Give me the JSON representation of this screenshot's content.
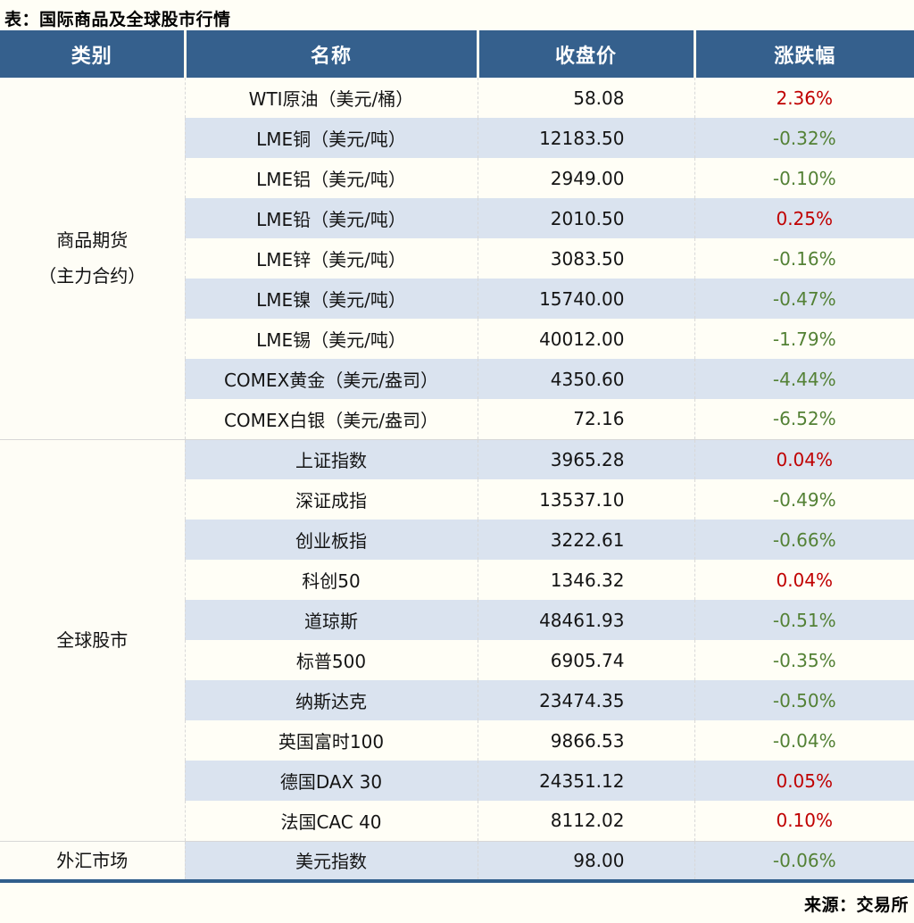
{
  "title": "表：国际商品及全球股市行情",
  "source": "来源：交易所",
  "colors": {
    "header_bg": "#35608D",
    "header_text": "#FFFFFF",
    "row_alt_bg": "#DAE3EF",
    "page_bg": "#FFFEF6",
    "up": "#C00000",
    "down": "#538135",
    "bottom_border": "#315F8C"
  },
  "table": {
    "headers": [
      "类别",
      "名称",
      "收盘价",
      "涨跌幅"
    ],
    "groups": [
      {
        "category_lines": [
          "商品期货",
          "（主力合约）"
        ],
        "rows": [
          {
            "name": "WTI原油（美元/桶）",
            "close": "58.08",
            "change": "2.36%",
            "direction": "up"
          },
          {
            "name": "LME铜（美元/吨）",
            "close": "12183.50",
            "change": "-0.32%",
            "direction": "down"
          },
          {
            "name": "LME铝（美元/吨）",
            "close": "2949.00",
            "change": "-0.10%",
            "direction": "down"
          },
          {
            "name": "LME铅（美元/吨）",
            "close": "2010.50",
            "change": "0.25%",
            "direction": "up"
          },
          {
            "name": "LME锌（美元/吨）",
            "close": "3083.50",
            "change": "-0.16%",
            "direction": "down"
          },
          {
            "name": "LME镍（美元/吨）",
            "close": "15740.00",
            "change": "-0.47%",
            "direction": "down"
          },
          {
            "name": "LME锡（美元/吨）",
            "close": "40012.00",
            "change": "-1.79%",
            "direction": "down"
          },
          {
            "name": "COMEX黄金（美元/盎司）",
            "close": "4350.60",
            "change": "-4.44%",
            "direction": "down"
          },
          {
            "name": "COMEX白银（美元/盎司）",
            "close": "72.16",
            "change": "-6.52%",
            "direction": "down"
          }
        ]
      },
      {
        "category_lines": [
          "全球股市"
        ],
        "rows": [
          {
            "name": "上证指数",
            "close": "3965.28",
            "change": "0.04%",
            "direction": "up"
          },
          {
            "name": "深证成指",
            "close": "13537.10",
            "change": "-0.49%",
            "direction": "down"
          },
          {
            "name": "创业板指",
            "close": "3222.61",
            "change": "-0.66%",
            "direction": "down"
          },
          {
            "name": "科创50",
            "close": "1346.32",
            "change": "0.04%",
            "direction": "up"
          },
          {
            "name": "道琼斯",
            "close": "48461.93",
            "change": "-0.51%",
            "direction": "down"
          },
          {
            "name": "标普500",
            "close": "6905.74",
            "change": "-0.35%",
            "direction": "down"
          },
          {
            "name": "纳斯达克",
            "close": "23474.35",
            "change": "-0.50%",
            "direction": "down"
          },
          {
            "name": "英国富时100",
            "close": "9866.53",
            "change": "-0.04%",
            "direction": "down"
          },
          {
            "name": "德国DAX 30",
            "close": "24351.12",
            "change": "0.05%",
            "direction": "up"
          },
          {
            "name": "法国CAC 40",
            "close": "8112.02",
            "change": "0.10%",
            "direction": "up"
          }
        ]
      },
      {
        "category_lines": [
          "外汇市场"
        ],
        "rows": [
          {
            "name": "美元指数",
            "close": "98.00",
            "change": "-0.06%",
            "direction": "down"
          }
        ]
      }
    ]
  },
  "chart_data": {
    "type": "table",
    "title": "表：国际商品及全球股市行情",
    "columns": [
      "类别",
      "名称",
      "收盘价",
      "涨跌幅"
    ],
    "rows": [
      [
        "商品期货（主力合约）",
        "WTI原油（美元/桶）",
        58.08,
        "2.36%"
      ],
      [
        "商品期货（主力合约）",
        "LME铜（美元/吨）",
        12183.5,
        "-0.32%"
      ],
      [
        "商品期货（主力合约）",
        "LME铝（美元/吨）",
        2949.0,
        "-0.10%"
      ],
      [
        "商品期货（主力合约）",
        "LME铅（美元/吨）",
        2010.5,
        "0.25%"
      ],
      [
        "商品期货（主力合约）",
        "LME锌（美元/吨）",
        3083.5,
        "-0.16%"
      ],
      [
        "商品期货（主力合约）",
        "LME镍（美元/吨）",
        15740.0,
        "-0.47%"
      ],
      [
        "商品期货（主力合约）",
        "LME锡（美元/吨）",
        40012.0,
        "-1.79%"
      ],
      [
        "商品期货（主力合约）",
        "COMEX黄金（美元/盎司）",
        4350.6,
        "-4.44%"
      ],
      [
        "商品期货（主力合约）",
        "COMEX白银（美元/盎司）",
        72.16,
        "-6.52%"
      ],
      [
        "全球股市",
        "上证指数",
        3965.28,
        "0.04%"
      ],
      [
        "全球股市",
        "深证成指",
        13537.1,
        "-0.49%"
      ],
      [
        "全球股市",
        "创业板指",
        3222.61,
        "-0.66%"
      ],
      [
        "全球股市",
        "科创50",
        1346.32,
        "0.04%"
      ],
      [
        "全球股市",
        "道琼斯",
        48461.93,
        "-0.51%"
      ],
      [
        "全球股市",
        "标普500",
        6905.74,
        "-0.35%"
      ],
      [
        "全球股市",
        "纳斯达克",
        23474.35,
        "-0.50%"
      ],
      [
        "全球股市",
        "英国富时100",
        9866.53,
        "-0.04%"
      ],
      [
        "全球股市",
        "德国DAX 30",
        24351.12,
        "0.05%"
      ],
      [
        "全球股市",
        "法国CAC 40",
        8112.02,
        "0.10%"
      ],
      [
        "外汇市场",
        "美元指数",
        98.0,
        "-0.06%"
      ]
    ],
    "source": "来源：交易所",
    "notes": "positive changes shown in red, negative in green"
  }
}
